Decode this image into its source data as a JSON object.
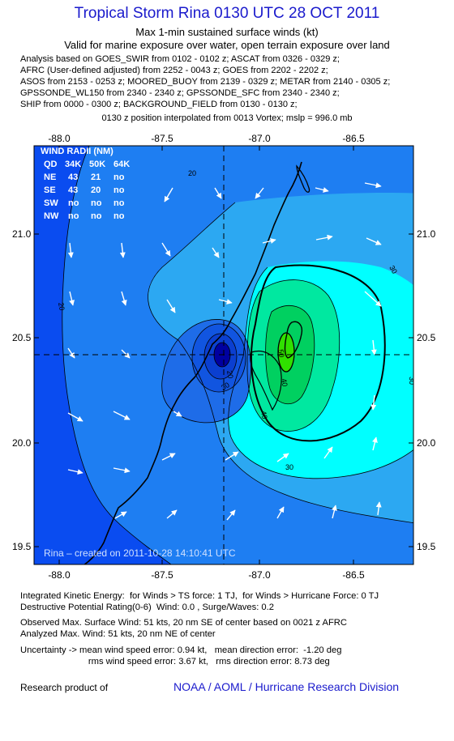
{
  "header": {
    "title": "Tropical Storm Rina 0130 UTC 28 OCT 2011",
    "subtitle1": "Max 1-min sustained surface winds (kt)",
    "subtitle2": "Valid for marine exposure over water, open terrain exposure over land"
  },
  "analysis": {
    "lines": [
      "Analysis based on GOES_SWIR from 0102 - 0102 z; ASCAT from 0326 - 0329 z;",
      "AFRC (User-defined adjusted) from 2252 - 0043 z; GOES from 2202 - 2202 z;",
      "ASOS from 2153 - 0253 z; MOORED_BUOY from 2139 - 0329 z; METAR from 2140 - 0305 z;",
      "GPSSONDE_WL150 from 2340 - 2340 z; GPSSONDE_SFC from 2340 - 2340 z;",
      "SHIP from 0000 - 0300 z; BACKGROUND_FIELD from 0130 - 0130 z;"
    ],
    "position_note": "0130 z position interpolated from 0013 Vortex; mslp = 996.0 mb"
  },
  "map": {
    "lon_ticks": [
      "-88.0",
      "-87.5",
      "-87.0",
      "-86.5"
    ],
    "lat_ticks": [
      "21.0",
      "20.5",
      "20.0",
      "19.5"
    ],
    "contour_labels": [
      "20",
      "20",
      "30",
      "30",
      "40",
      "50",
      "20",
      "30",
      "40",
      "30"
    ],
    "colors": {
      "level_10": "#0a4cf0",
      "level_20": "#1e7ef2",
      "level_30": "#2ca8f2",
      "level_40": "#00ffff",
      "level_50": "#00e8a0",
      "level_60": "#00d060",
      "level_70": "#30e000",
      "eye_core": "#0000a0"
    },
    "wind_radii": {
      "title": "WIND RADII (NM)",
      "header": [
        "QD",
        "34K",
        "50K",
        "64K"
      ],
      "rows": [
        [
          "NE",
          "43",
          "21",
          "no"
        ],
        [
          "SE",
          "43",
          "20",
          "no"
        ],
        [
          "SW",
          "no",
          "no",
          "no"
        ],
        [
          "NW",
          "no",
          "no",
          "no"
        ]
      ]
    },
    "created": "Rina – created on 2011-10-28 14:10:41 UTC"
  },
  "bottom": {
    "ike": "Integrated Kinetic Energy:  for Winds > TS force: 1 TJ,  for Winds > Hurricane Force: 0 TJ",
    "dpr": "Destructive Potential Rating(0-6)  Wind: 0.0 , Surge/Waves: 0.2",
    "obs_max": "Observed Max. Surface Wind: 51 kts, 20 nm SE of center based on 0021 z AFRC",
    "ana_max": "Analyzed Max. Wind: 51 kts, 20 nm NE of center",
    "unc1": "Uncertainty -> mean wind speed error: 0.94 kt,   mean direction error:  -1.20 deg",
    "unc2": "                           rms wind speed error: 3.67 kt,   rms direction error: 8.73 deg"
  },
  "footer": {
    "left": "Research product of",
    "right": "NOAA / AOML / Hurricane Research Division"
  }
}
